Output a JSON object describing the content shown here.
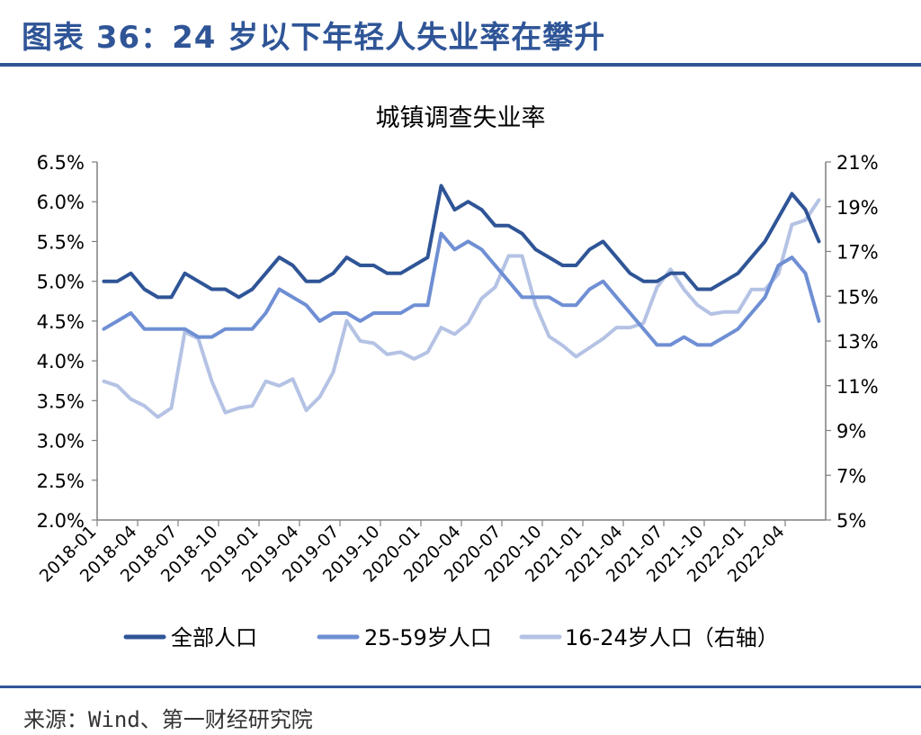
{
  "header": {
    "title": "图表 36：24 岁以下年轻人失业率在攀升"
  },
  "footer": {
    "source": "来源：Wind、第一财经研究院"
  },
  "chart_data": {
    "type": "line",
    "title": "城镇调查失业率",
    "x": [
      "2018-01",
      "2018-02",
      "2018-03",
      "2018-04",
      "2018-05",
      "2018-06",
      "2018-07",
      "2018-08",
      "2018-09",
      "2018-10",
      "2018-11",
      "2018-12",
      "2019-01",
      "2019-02",
      "2019-03",
      "2019-04",
      "2019-05",
      "2019-06",
      "2019-07",
      "2019-08",
      "2019-09",
      "2019-10",
      "2019-11",
      "2019-12",
      "2020-01",
      "2020-02",
      "2020-03",
      "2020-04",
      "2020-05",
      "2020-06",
      "2020-07",
      "2020-08",
      "2020-09",
      "2020-10",
      "2020-11",
      "2020-12",
      "2021-01",
      "2021-02",
      "2021-03",
      "2021-04",
      "2021-05",
      "2021-06",
      "2021-07",
      "2021-08",
      "2021-09",
      "2021-10",
      "2021-11",
      "2021-12",
      "2022-01",
      "2022-02",
      "2022-03",
      "2022-04",
      "2022-05",
      "2022-06"
    ],
    "x_tick_labels": [
      "2018-01",
      "2018-04",
      "2018-07",
      "2018-10",
      "2019-01",
      "2019-04",
      "2019-07",
      "2019-10",
      "2020-01",
      "2020-04",
      "2020-07",
      "2020-10",
      "2021-01",
      "2021-04",
      "2021-07",
      "2021-10",
      "2022-01",
      "2022-04"
    ],
    "y_left": {
      "ylim": [
        2.0,
        6.5
      ],
      "ticks": [
        "2.0%",
        "2.5%",
        "3.0%",
        "3.5%",
        "4.0%",
        "4.5%",
        "5.0%",
        "5.5%",
        "6.0%",
        "6.5%"
      ]
    },
    "y_right": {
      "ylim": [
        5,
        21
      ],
      "ticks": [
        "5%",
        "7%",
        "9%",
        "11%",
        "13%",
        "15%",
        "17%",
        "19%",
        "21%"
      ]
    },
    "grid": false,
    "legend_position": "bottom",
    "series": [
      {
        "name": "全部人口",
        "axis": "left",
        "color": "#2f5597",
        "values": [
          5.0,
          5.0,
          5.1,
          4.9,
          4.8,
          4.8,
          5.1,
          5.0,
          4.9,
          4.9,
          4.8,
          4.9,
          5.1,
          5.3,
          5.2,
          5.0,
          5.0,
          5.1,
          5.3,
          5.2,
          5.2,
          5.1,
          5.1,
          5.2,
          5.3,
          6.2,
          5.9,
          6.0,
          5.9,
          5.7,
          5.7,
          5.6,
          5.4,
          5.3,
          5.2,
          5.2,
          5.4,
          5.5,
          5.3,
          5.1,
          5.0,
          5.0,
          5.1,
          5.1,
          4.9,
          4.9,
          5.0,
          5.1,
          5.3,
          5.5,
          5.8,
          6.1,
          5.9,
          5.5
        ]
      },
      {
        "name": "25-59岁人口",
        "axis": "left",
        "color": "#6f8fd4",
        "values": [
          4.4,
          4.5,
          4.6,
          4.4,
          4.4,
          4.4,
          4.4,
          4.3,
          4.3,
          4.4,
          4.4,
          4.4,
          4.6,
          4.9,
          4.8,
          4.7,
          4.5,
          4.6,
          4.6,
          4.5,
          4.6,
          4.6,
          4.6,
          4.7,
          4.7,
          5.6,
          5.4,
          5.5,
          5.4,
          5.2,
          5.0,
          4.8,
          4.8,
          4.8,
          4.7,
          4.7,
          4.9,
          5.0,
          4.8,
          4.6,
          4.4,
          4.2,
          4.2,
          4.3,
          4.2,
          4.2,
          4.3,
          4.4,
          4.6,
          4.8,
          5.2,
          5.3,
          5.1,
          4.5
        ]
      },
      {
        "name": "16-24岁人口（右轴）",
        "axis": "right",
        "color": "#b4c2e4",
        "values": [
          11.2,
          11.0,
          10.4,
          10.1,
          9.6,
          10.0,
          13.4,
          13.1,
          11.2,
          9.8,
          10.0,
          10.1,
          11.2,
          11.0,
          11.3,
          9.9,
          10.5,
          11.6,
          13.9,
          13.0,
          12.9,
          12.4,
          12.5,
          12.2,
          12.5,
          13.6,
          13.3,
          13.8,
          14.9,
          15.4,
          16.8,
          16.8,
          14.6,
          13.2,
          12.8,
          12.3,
          12.7,
          13.1,
          13.6,
          13.6,
          13.8,
          15.4,
          16.2,
          15.3,
          14.6,
          14.2,
          14.3,
          14.3,
          15.3,
          15.3,
          16.0,
          18.2,
          18.4,
          19.3
        ]
      }
    ]
  }
}
